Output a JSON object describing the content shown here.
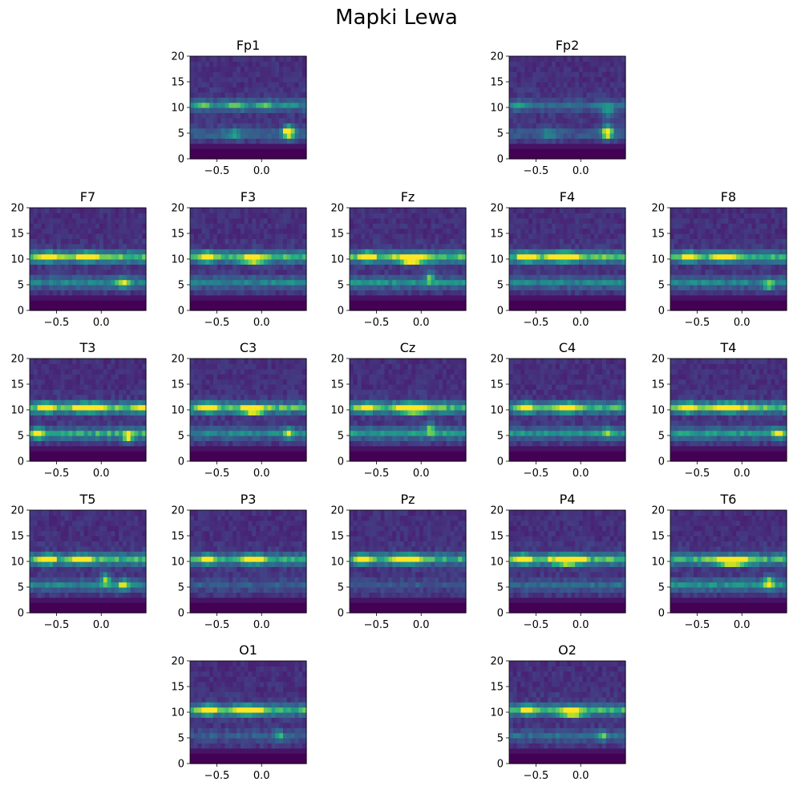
{
  "title": "Mapki Lewa",
  "colormap": "viridis",
  "colormap_stops": [
    "#440154",
    "#482475",
    "#414487",
    "#355f8d",
    "#2a788e",
    "#21918c",
    "#22a884",
    "#44bf70",
    "#7ad151",
    "#bddf26",
    "#fde725"
  ],
  "chart_data": [
    {
      "type": "heatmap",
      "title": "Fp1",
      "xlim": [
        -0.8,
        0.5
      ],
      "ylim": [
        0,
        20
      ],
      "xticks": [
        -0.5,
        0.0
      ],
      "xtick_labels": [
        "−0.5",
        "0.0"
      ],
      "yticks": [
        0,
        5,
        10,
        15,
        20
      ],
      "ytick_labels": [
        "0",
        "5",
        "10",
        "15",
        "20"
      ],
      "bands": [
        {
          "freq": 10.5,
          "strength": 0.3
        },
        {
          "freq": 5.0,
          "strength": 0.2
        }
      ],
      "hotspots": [
        {
          "t": 0.3,
          "f": 5.3,
          "v": 1.0,
          "wt": 0.06,
          "wf": 1.2
        },
        {
          "t": -0.68,
          "f": 10.5,
          "v": 0.3,
          "wt": 0.1,
          "wf": 0.8
        },
        {
          "t": -0.3,
          "f": 10.5,
          "v": 0.25,
          "wt": 0.15,
          "wf": 0.8
        },
        {
          "t": -0.3,
          "f": 5.0,
          "v": 0.3,
          "wt": 0.07,
          "wf": 1.0
        },
        {
          "t": 0.05,
          "f": 10.5,
          "v": 0.25,
          "wt": 0.08,
          "wf": 0.8
        }
      ]
    },
    {
      "type": "heatmap",
      "title": "Fp2",
      "xlim": [
        -0.8,
        0.5
      ],
      "ylim": [
        0,
        20
      ],
      "xticks": [
        -0.5,
        0.0
      ],
      "xtick_labels": [
        "−0.5",
        "0.0"
      ],
      "yticks": [
        0,
        5,
        10,
        15,
        20
      ],
      "ytick_labels": [
        "0",
        "5",
        "10",
        "15",
        "20"
      ],
      "bands": [
        {
          "freq": 10.5,
          "strength": 0.2
        },
        {
          "freq": 5.0,
          "strength": 0.15
        }
      ],
      "hotspots": [
        {
          "t": 0.3,
          "f": 5.3,
          "v": 1.0,
          "wt": 0.06,
          "wf": 1.2
        },
        {
          "t": -0.7,
          "f": 10.5,
          "v": 0.25,
          "wt": 0.1,
          "wf": 0.8
        },
        {
          "t": -0.35,
          "f": 5.0,
          "v": 0.25,
          "wt": 0.08,
          "wf": 1.0
        },
        {
          "t": 0.3,
          "f": 9.5,
          "v": 0.3,
          "wt": 0.08,
          "wf": 1.5
        }
      ]
    },
    {
      "type": "heatmap",
      "title": "F7",
      "xlim": [
        -0.8,
        0.5
      ],
      "ylim": [
        0,
        20
      ],
      "xticks": [
        -0.5,
        0.0
      ],
      "xtick_labels": [
        "−0.5",
        "0.0"
      ],
      "yticks": [
        0,
        5,
        10,
        15,
        20
      ],
      "ytick_labels": [
        "0",
        "5",
        "10",
        "15",
        "20"
      ],
      "bands": [
        {
          "freq": 10.5,
          "strength": 0.55
        },
        {
          "freq": 5.5,
          "strength": 0.3
        }
      ],
      "hotspots": [
        {
          "t": -0.6,
          "f": 10.5,
          "v": 1.0,
          "wt": 0.07,
          "wf": 0.8
        },
        {
          "t": -0.15,
          "f": 10.5,
          "v": 0.7,
          "wt": 0.12,
          "wf": 0.8
        },
        {
          "t": 0.25,
          "f": 5.5,
          "v": 0.5,
          "wt": 0.07,
          "wf": 1.0
        }
      ]
    },
    {
      "type": "heatmap",
      "title": "F3",
      "xlim": [
        -0.8,
        0.5
      ],
      "ylim": [
        0,
        20
      ],
      "xticks": [
        -0.5,
        0.0
      ],
      "xtick_labels": [
        "−0.5",
        "0.0"
      ],
      "yticks": [
        0,
        5,
        10,
        15,
        20
      ],
      "ytick_labels": [
        "0",
        "5",
        "10",
        "15",
        "20"
      ],
      "bands": [
        {
          "freq": 10.5,
          "strength": 0.55
        },
        {
          "freq": 5.5,
          "strength": 0.3
        }
      ],
      "hotspots": [
        {
          "t": -0.6,
          "f": 10.5,
          "v": 0.95,
          "wt": 0.07,
          "wf": 0.8
        },
        {
          "t": -0.1,
          "f": 10.0,
          "v": 0.8,
          "wt": 0.12,
          "wf": 0.8
        }
      ]
    },
    {
      "type": "heatmap",
      "title": "Fz",
      "xlim": [
        -0.8,
        0.5
      ],
      "ylim": [
        0,
        20
      ],
      "xticks": [
        -0.5,
        0.0
      ],
      "xtick_labels": [
        "−0.5",
        "0.0"
      ],
      "yticks": [
        0,
        5,
        10,
        15,
        20
      ],
      "ytick_labels": [
        "0",
        "5",
        "10",
        "15",
        "20"
      ],
      "bands": [
        {
          "freq": 10.5,
          "strength": 0.55
        },
        {
          "freq": 5.5,
          "strength": 0.35
        }
      ],
      "hotspots": [
        {
          "t": -0.6,
          "f": 10.5,
          "v": 0.95,
          "wt": 0.07,
          "wf": 0.8
        },
        {
          "t": -0.1,
          "f": 10.0,
          "v": 0.95,
          "wt": 0.15,
          "wf": 0.8
        },
        {
          "t": 0.1,
          "f": 6.5,
          "v": 0.5,
          "wt": 0.05,
          "wf": 1.2
        }
      ]
    },
    {
      "type": "heatmap",
      "title": "F4",
      "xlim": [
        -0.8,
        0.5
      ],
      "ylim": [
        0,
        20
      ],
      "xticks": [
        -0.5,
        0.0
      ],
      "xtick_labels": [
        "−0.5",
        "0.0"
      ],
      "yticks": [
        0,
        5,
        10,
        15,
        20
      ],
      "ytick_labels": [
        "0",
        "5",
        "10",
        "15",
        "20"
      ],
      "bands": [
        {
          "freq": 10.5,
          "strength": 0.55
        },
        {
          "freq": 5.5,
          "strength": 0.3
        }
      ],
      "hotspots": [
        {
          "t": -0.6,
          "f": 10.5,
          "v": 0.95,
          "wt": 0.07,
          "wf": 0.8
        },
        {
          "t": -0.2,
          "f": 10.5,
          "v": 0.9,
          "wt": 0.15,
          "wf": 0.8
        }
      ]
    },
    {
      "type": "heatmap",
      "title": "F8",
      "xlim": [
        -0.8,
        0.5
      ],
      "ylim": [
        0,
        20
      ],
      "xticks": [
        -0.5,
        0.0
      ],
      "xtick_labels": [
        "−0.5",
        "0.0"
      ],
      "yticks": [
        0,
        5,
        10,
        15,
        20
      ],
      "ytick_labels": [
        "0",
        "5",
        "10",
        "15",
        "20"
      ],
      "bands": [
        {
          "freq": 10.5,
          "strength": 0.5
        },
        {
          "freq": 5.5,
          "strength": 0.3
        }
      ],
      "hotspots": [
        {
          "t": -0.6,
          "f": 10.5,
          "v": 0.95,
          "wt": 0.07,
          "wf": 0.8
        },
        {
          "t": -0.2,
          "f": 10.5,
          "v": 0.65,
          "wt": 0.12,
          "wf": 0.8
        },
        {
          "t": 0.3,
          "f": 5.0,
          "v": 0.5,
          "wt": 0.06,
          "wf": 1.0
        }
      ]
    },
    {
      "type": "heatmap",
      "title": "T3",
      "xlim": [
        -0.8,
        0.5
      ],
      "ylim": [
        0,
        20
      ],
      "xticks": [
        -0.5,
        0.0
      ],
      "xtick_labels": [
        "−0.5",
        "0.0"
      ],
      "yticks": [
        0,
        5,
        10,
        15,
        20
      ],
      "ytick_labels": [
        "0",
        "5",
        "10",
        "15",
        "20"
      ],
      "bands": [
        {
          "freq": 10.5,
          "strength": 0.55
        },
        {
          "freq": 5.5,
          "strength": 0.45
        }
      ],
      "hotspots": [
        {
          "t": -0.6,
          "f": 10.5,
          "v": 0.95,
          "wt": 0.07,
          "wf": 0.8
        },
        {
          "t": -0.15,
          "f": 10.5,
          "v": 0.85,
          "wt": 0.15,
          "wf": 0.8
        },
        {
          "t": 0.45,
          "f": 10.5,
          "v": 0.7,
          "wt": 0.05,
          "wf": 0.8
        },
        {
          "t": 0.3,
          "f": 4.8,
          "v": 0.8,
          "wt": 0.05,
          "wf": 1.0
        },
        {
          "t": -0.7,
          "f": 5.5,
          "v": 0.6,
          "wt": 0.05,
          "wf": 1.0
        }
      ]
    },
    {
      "type": "heatmap",
      "title": "C3",
      "xlim": [
        -0.8,
        0.5
      ],
      "ylim": [
        0,
        20
      ],
      "xticks": [
        -0.5,
        0.0
      ],
      "xtick_labels": [
        "−0.5",
        "0.0"
      ],
      "yticks": [
        0,
        5,
        10,
        15,
        20
      ],
      "ytick_labels": [
        "0",
        "5",
        "10",
        "15",
        "20"
      ],
      "bands": [
        {
          "freq": 10.5,
          "strength": 0.55
        },
        {
          "freq": 5.5,
          "strength": 0.3
        }
      ],
      "hotspots": [
        {
          "t": -0.6,
          "f": 10.5,
          "v": 0.95,
          "wt": 0.07,
          "wf": 0.8
        },
        {
          "t": -0.1,
          "f": 10.0,
          "v": 0.85,
          "wt": 0.12,
          "wf": 0.8
        },
        {
          "t": 0.3,
          "f": 5.5,
          "v": 0.5,
          "wt": 0.06,
          "wf": 1.0
        }
      ]
    },
    {
      "type": "heatmap",
      "title": "Cz",
      "xlim": [
        -0.8,
        0.5
      ],
      "ylim": [
        0,
        20
      ],
      "xticks": [
        -0.5,
        0.0
      ],
      "xtick_labels": [
        "−0.5",
        "0.0"
      ],
      "yticks": [
        0,
        5,
        10,
        15,
        20
      ],
      "ytick_labels": [
        "0",
        "5",
        "10",
        "15",
        "20"
      ],
      "bands": [
        {
          "freq": 10.5,
          "strength": 0.55
        },
        {
          "freq": 5.5,
          "strength": 0.4
        }
      ],
      "hotspots": [
        {
          "t": -0.6,
          "f": 10.5,
          "v": 0.7,
          "wt": 0.07,
          "wf": 0.8
        },
        {
          "t": -0.1,
          "f": 10.3,
          "v": 1.0,
          "wt": 0.15,
          "wf": 0.9
        },
        {
          "t": 0.1,
          "f": 6.5,
          "v": 0.5,
          "wt": 0.05,
          "wf": 1.2
        }
      ]
    },
    {
      "type": "heatmap",
      "title": "C4",
      "xlim": [
        -0.8,
        0.5
      ],
      "ylim": [
        0,
        20
      ],
      "xticks": [
        -0.5,
        0.0
      ],
      "xtick_labels": [
        "−0.5",
        "0.0"
      ],
      "yticks": [
        0,
        5,
        10,
        15,
        20
      ],
      "ytick_labels": [
        "0",
        "5",
        "10",
        "15",
        "20"
      ],
      "bands": [
        {
          "freq": 10.5,
          "strength": 0.5
        },
        {
          "freq": 5.5,
          "strength": 0.35
        }
      ],
      "hotspots": [
        {
          "t": -0.6,
          "f": 10.5,
          "v": 0.75,
          "wt": 0.07,
          "wf": 0.8
        },
        {
          "t": -0.15,
          "f": 10.5,
          "v": 0.95,
          "wt": 0.1,
          "wf": 0.8
        },
        {
          "t": 0.3,
          "f": 5.5,
          "v": 0.4,
          "wt": 0.06,
          "wf": 1.0
        }
      ]
    },
    {
      "type": "heatmap",
      "title": "T4",
      "xlim": [
        -0.8,
        0.5
      ],
      "ylim": [
        0,
        20
      ],
      "xticks": [
        -0.5,
        0.0
      ],
      "xtick_labels": [
        "−0.5",
        "0.0"
      ],
      "yticks": [
        0,
        5,
        10,
        15,
        20
      ],
      "ytick_labels": [
        "0",
        "5",
        "10",
        "15",
        "20"
      ],
      "bands": [
        {
          "freq": 10.5,
          "strength": 0.55
        },
        {
          "freq": 5.5,
          "strength": 0.4
        }
      ],
      "hotspots": [
        {
          "t": -0.6,
          "f": 10.5,
          "v": 0.95,
          "wt": 0.07,
          "wf": 0.8
        },
        {
          "t": -0.15,
          "f": 10.5,
          "v": 0.75,
          "wt": 0.15,
          "wf": 0.8
        },
        {
          "t": 0.4,
          "f": 5.5,
          "v": 0.55,
          "wt": 0.06,
          "wf": 1.0
        }
      ]
    },
    {
      "type": "heatmap",
      "title": "T5",
      "xlim": [
        -0.8,
        0.5
      ],
      "ylim": [
        0,
        20
      ],
      "xticks": [
        -0.5,
        0.0
      ],
      "xtick_labels": [
        "−0.5",
        "0.0"
      ],
      "yticks": [
        0,
        5,
        10,
        15,
        20
      ],
      "ytick_labels": [
        "0",
        "5",
        "10",
        "15",
        "20"
      ],
      "bands": [
        {
          "freq": 10.5,
          "strength": 0.5
        },
        {
          "freq": 5.5,
          "strength": 0.3
        }
      ],
      "hotspots": [
        {
          "t": -0.6,
          "f": 10.5,
          "v": 0.95,
          "wt": 0.07,
          "wf": 0.8
        },
        {
          "t": -0.2,
          "f": 10.5,
          "v": 0.6,
          "wt": 0.1,
          "wf": 0.8
        },
        {
          "t": 0.05,
          "f": 6.5,
          "v": 0.6,
          "wt": 0.05,
          "wf": 1.2
        },
        {
          "t": 0.25,
          "f": 5.5,
          "v": 0.55,
          "wt": 0.06,
          "wf": 1.0
        }
      ]
    },
    {
      "type": "heatmap",
      "title": "P3",
      "xlim": [
        -0.8,
        0.5
      ],
      "ylim": [
        0,
        20
      ],
      "xticks": [
        -0.5,
        0.0
      ],
      "xtick_labels": [
        "−0.5",
        "0.0"
      ],
      "yticks": [
        0,
        5,
        10,
        15,
        20
      ],
      "ytick_labels": [
        "0",
        "5",
        "10",
        "15",
        "20"
      ],
      "bands": [
        {
          "freq": 10.5,
          "strength": 0.45
        },
        {
          "freq": 5.5,
          "strength": 0.15
        }
      ],
      "hotspots": [
        {
          "t": -0.6,
          "f": 10.5,
          "v": 0.95,
          "wt": 0.07,
          "wf": 0.8
        },
        {
          "t": -0.1,
          "f": 10.5,
          "v": 0.8,
          "wt": 0.12,
          "wf": 0.8
        }
      ]
    },
    {
      "type": "heatmap",
      "title": "Pz",
      "xlim": [
        -0.8,
        0.5
      ],
      "ylim": [
        0,
        20
      ],
      "xticks": [
        -0.5,
        0.0
      ],
      "xtick_labels": [
        "−0.5",
        "0.0"
      ],
      "yticks": [
        0,
        5,
        10,
        15,
        20
      ],
      "ytick_labels": [
        "0",
        "5",
        "10",
        "15",
        "20"
      ],
      "bands": [
        {
          "freq": 10.5,
          "strength": 0.45
        },
        {
          "freq": 5.5,
          "strength": 0.12
        }
      ],
      "hotspots": [
        {
          "t": -0.65,
          "f": 10.5,
          "v": 0.85,
          "wt": 0.07,
          "wf": 0.8
        },
        {
          "t": -0.15,
          "f": 10.5,
          "v": 0.8,
          "wt": 0.15,
          "wf": 0.8
        }
      ]
    },
    {
      "type": "heatmap",
      "title": "P4",
      "xlim": [
        -0.8,
        0.5
      ],
      "ylim": [
        0,
        20
      ],
      "xticks": [
        -0.5,
        0.0
      ],
      "xtick_labels": [
        "−0.5",
        "0.0"
      ],
      "yticks": [
        0,
        5,
        10,
        15,
        20
      ],
      "ytick_labels": [
        "0",
        "5",
        "10",
        "15",
        "20"
      ],
      "bands": [
        {
          "freq": 10.5,
          "strength": 0.55
        },
        {
          "freq": 5.5,
          "strength": 0.2
        }
      ],
      "hotspots": [
        {
          "t": -0.65,
          "f": 10.5,
          "v": 0.9,
          "wt": 0.07,
          "wf": 0.8
        },
        {
          "t": -0.15,
          "f": 10.3,
          "v": 1.0,
          "wt": 0.15,
          "wf": 0.9
        }
      ]
    },
    {
      "type": "heatmap",
      "title": "T6",
      "xlim": [
        -0.8,
        0.5
      ],
      "ylim": [
        0,
        20
      ],
      "xticks": [
        -0.5,
        0.0
      ],
      "xtick_labels": [
        "−0.5",
        "0.0"
      ],
      "yticks": [
        0,
        5,
        10,
        15,
        20
      ],
      "ytick_labels": [
        "0",
        "5",
        "10",
        "15",
        "20"
      ],
      "bands": [
        {
          "freq": 10.5,
          "strength": 0.5
        },
        {
          "freq": 5.5,
          "strength": 0.35
        }
      ],
      "hotspots": [
        {
          "t": -0.1,
          "f": 10.0,
          "v": 0.9,
          "wt": 0.18,
          "wf": 0.8
        },
        {
          "t": 0.3,
          "f": 6.0,
          "v": 0.55,
          "wt": 0.06,
          "wf": 1.2
        }
      ]
    },
    {
      "type": "heatmap",
      "title": "O1",
      "xlim": [
        -0.8,
        0.5
      ],
      "ylim": [
        0,
        20
      ],
      "xticks": [
        -0.5,
        0.0
      ],
      "xtick_labels": [
        "−0.5",
        "0.0"
      ],
      "yticks": [
        0,
        5,
        10,
        15,
        20
      ],
      "ytick_labels": [
        "0",
        "5",
        "10",
        "15",
        "20"
      ],
      "bands": [
        {
          "freq": 10.5,
          "strength": 0.5
        },
        {
          "freq": 5.5,
          "strength": 0.15
        }
      ],
      "hotspots": [
        {
          "t": -0.6,
          "f": 10.5,
          "v": 1.0,
          "wt": 0.07,
          "wf": 0.8
        },
        {
          "t": -0.15,
          "f": 10.5,
          "v": 0.9,
          "wt": 0.15,
          "wf": 0.8
        },
        {
          "t": 0.2,
          "f": 5.5,
          "v": 0.4,
          "wt": 0.05,
          "wf": 1.0
        }
      ]
    },
    {
      "type": "heatmap",
      "title": "O2",
      "xlim": [
        -0.8,
        0.5
      ],
      "ylim": [
        0,
        20
      ],
      "xticks": [
        -0.5,
        0.0
      ],
      "xtick_labels": [
        "−0.5",
        "0.0"
      ],
      "yticks": [
        0,
        5,
        10,
        15,
        20
      ],
      "ytick_labels": [
        "0",
        "5",
        "10",
        "15",
        "20"
      ],
      "bands": [
        {
          "freq": 10.5,
          "strength": 0.5
        },
        {
          "freq": 5.5,
          "strength": 0.2
        }
      ],
      "hotspots": [
        {
          "t": -0.6,
          "f": 10.5,
          "v": 0.8,
          "wt": 0.07,
          "wf": 0.8
        },
        {
          "t": -0.1,
          "f": 10.0,
          "v": 0.9,
          "wt": 0.12,
          "wf": 0.8
        },
        {
          "t": 0.25,
          "f": 5.5,
          "v": 0.45,
          "wt": 0.05,
          "wf": 1.0
        }
      ]
    }
  ]
}
